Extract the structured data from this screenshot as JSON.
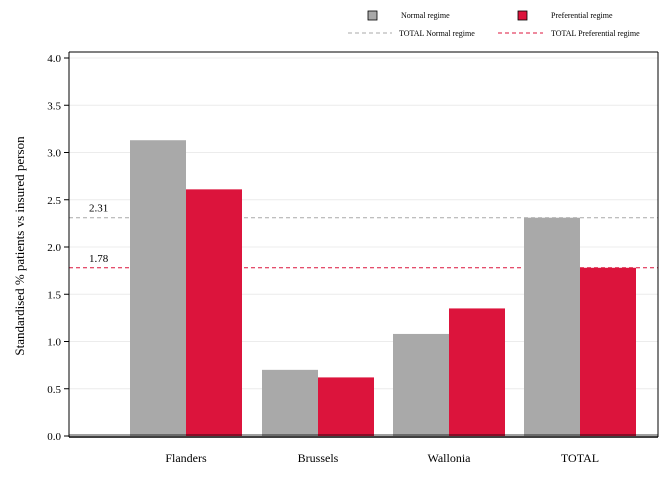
{
  "chart_data": {
    "type": "bar",
    "title": "",
    "xlabel": "",
    "ylabel": "Standardised % patients vs insured person",
    "categories": [
      "Flanders",
      "Brussels",
      "Wallonia",
      "TOTAL"
    ],
    "series": [
      {
        "name": "Normal regime",
        "color": "#a9a9a9",
        "values": [
          3.13,
          0.7,
          1.08,
          2.31
        ]
      },
      {
        "name": "Preferential regime",
        "color": "#dc143c",
        "values": [
          2.61,
          0.62,
          1.35,
          1.78
        ]
      }
    ],
    "reference_lines": [
      {
        "name": "TOTAL Normal regime",
        "value": 2.31,
        "label": "2.31",
        "color": "#a9a9a9",
        "style": "dashed"
      },
      {
        "name": "TOTAL Preferential regime",
        "value": 1.78,
        "label": "1.78",
        "color": "#dc143c",
        "style": "dashed"
      }
    ],
    "ylim": [
      0,
      4.0
    ],
    "yticks": [
      "0.0",
      "0.5",
      "1.0",
      "1.5",
      "2.0",
      "2.5",
      "3.0",
      "3.5",
      "4.0"
    ],
    "grid": true,
    "legend": "top-right"
  }
}
